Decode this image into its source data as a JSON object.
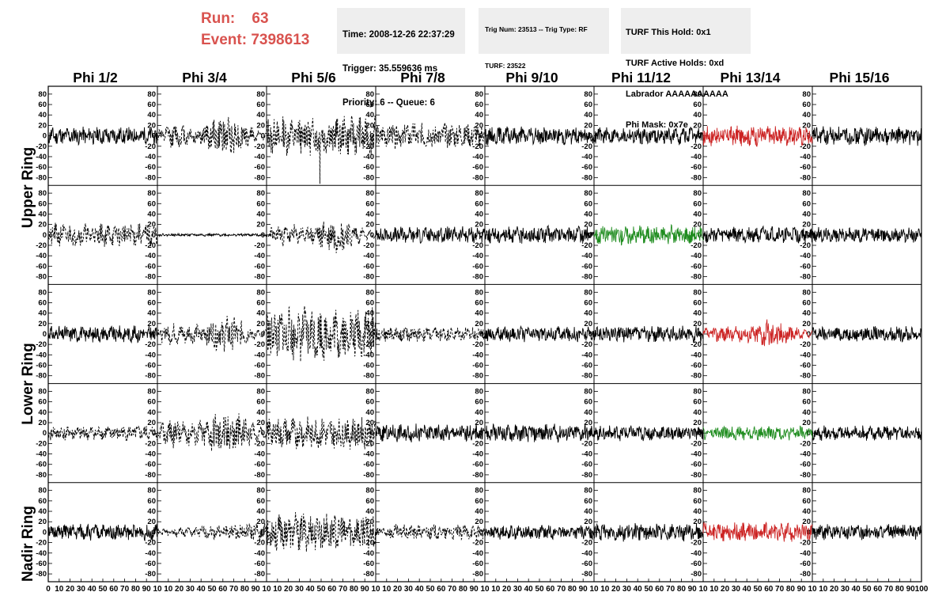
{
  "header": {
    "run_label": "Run:",
    "run_value": "63",
    "event_label": "Event:",
    "event_value": "7398613",
    "run_color": "#d9534f"
  },
  "info_box_1": {
    "time": "Time: 2008-12-26 22:37:29",
    "trigger": "Trigger: 35.559636 ms",
    "priority": "Priority: 6 -- Queue: 6"
  },
  "info_box_2": {
    "trig": "Trig Num: 23513 -- Trig Type: RF",
    "turf": "TURF: 23522"
  },
  "info_box_3": {
    "this_hold": "TURF This Hold: 0x1",
    "active_holds": "TURF Active Holds: 0xd",
    "labrador": "Labrador AAAAAAAAAA",
    "phi_mask": "Phi Mask: 0x7e"
  },
  "columns": [
    "Phi 1/2",
    "Phi 3/4",
    "Phi 5/6",
    "Phi 7/8",
    "Phi 9/10",
    "Phi 11/12",
    "Phi 13/14",
    "Phi 15/16"
  ],
  "row_labels": {
    "upper": "Upper Ring",
    "lower": "Lower Ring",
    "nadir": "Nadir Ring"
  },
  "chart_data": {
    "type": "line",
    "title": "",
    "xlabel": "",
    "ylabel": "",
    "xlim": [
      0,
      100
    ],
    "ylim": [
      -95,
      95
    ],
    "x_ticks": [
      0,
      10,
      20,
      30,
      40,
      50,
      60,
      70,
      80,
      90,
      100
    ],
    "y_ticks": [
      -80,
      -60,
      -40,
      -20,
      0,
      20,
      40,
      60,
      80
    ],
    "x_tick_labels_first": "0 10 20 30 40 50 60 70 80 90 10",
    "x_tick_labels_mid": "10 20 30 40 50 60 70 80 90 10",
    "x_tick_labels_last": "10 20 30 40 50 60 70 80 90 100",
    "colors": {
      "black": "#000000",
      "red": "#cc2222",
      "green": "#1e8c1e"
    },
    "rows": 5,
    "cols": 8,
    "panels": [
      {
        "row": 0,
        "col": 0,
        "style": "solid",
        "color": "black",
        "amp": 14,
        "env": "flat",
        "seed": 11
      },
      {
        "row": 0,
        "col": 1,
        "style": "dashed",
        "color": "black",
        "amp": 24,
        "env": "bump",
        "seed": 12
      },
      {
        "row": 0,
        "col": 2,
        "style": "dashed",
        "color": "black",
        "amp": 30,
        "env": "flat",
        "seed": 13,
        "spike": {
          "x": 49,
          "y": -92
        }
      },
      {
        "row": 0,
        "col": 3,
        "style": "dashed",
        "color": "black",
        "amp": 20,
        "env": "flat",
        "seed": 14
      },
      {
        "row": 0,
        "col": 4,
        "style": "solid",
        "color": "black",
        "amp": 14,
        "env": "flat",
        "seed": 15
      },
      {
        "row": 0,
        "col": 5,
        "style": "solid",
        "color": "black",
        "amp": 13,
        "env": "flat",
        "seed": 16
      },
      {
        "row": 0,
        "col": 6,
        "style": "solid",
        "color": "red",
        "amp": 16,
        "env": "flat",
        "seed": 17
      },
      {
        "row": 0,
        "col": 7,
        "style": "solid",
        "color": "black",
        "amp": 15,
        "env": "flat",
        "seed": 18
      },
      {
        "row": 1,
        "col": 0,
        "style": "dashed",
        "color": "black",
        "amp": 18,
        "env": "flat",
        "seed": 21
      },
      {
        "row": 1,
        "col": 1,
        "style": "solid",
        "color": "black",
        "amp": 2,
        "env": "flat",
        "seed": 22
      },
      {
        "row": 1,
        "col": 2,
        "style": "dashed",
        "color": "black",
        "amp": 22,
        "env": "bump",
        "seed": 23
      },
      {
        "row": 1,
        "col": 3,
        "style": "solid",
        "color": "black",
        "amp": 13,
        "env": "flat",
        "seed": 24
      },
      {
        "row": 1,
        "col": 4,
        "style": "solid",
        "color": "black",
        "amp": 14,
        "env": "flat",
        "seed": 25
      },
      {
        "row": 1,
        "col": 5,
        "style": "solid",
        "color": "green",
        "amp": 15,
        "env": "flat",
        "seed": 26
      },
      {
        "row": 1,
        "col": 6,
        "style": "solid",
        "color": "black",
        "amp": 13,
        "env": "flat",
        "seed": 27
      },
      {
        "row": 1,
        "col": 7,
        "style": "solid",
        "color": "black",
        "amp": 12,
        "env": "flat",
        "seed": 28
      },
      {
        "row": 2,
        "col": 0,
        "style": "solid",
        "color": "black",
        "amp": 13,
        "env": "flat",
        "seed": 31
      },
      {
        "row": 2,
        "col": 1,
        "style": "dashed",
        "color": "black",
        "amp": 22,
        "env": "bump",
        "seed": 32
      },
      {
        "row": 2,
        "col": 2,
        "style": "dashed",
        "color": "black",
        "amp": 42,
        "env": "flat",
        "seed": 33
      },
      {
        "row": 2,
        "col": 3,
        "style": "dashed",
        "color": "black",
        "amp": 12,
        "env": "flat",
        "seed": 34
      },
      {
        "row": 2,
        "col": 4,
        "style": "solid",
        "color": "black",
        "amp": 12,
        "env": "flat",
        "seed": 35
      },
      {
        "row": 2,
        "col": 5,
        "style": "solid",
        "color": "black",
        "amp": 13,
        "env": "flat",
        "seed": 36
      },
      {
        "row": 2,
        "col": 6,
        "style": "solid",
        "color": "red",
        "amp": 18,
        "env": "bump",
        "seed": 37
      },
      {
        "row": 2,
        "col": 7,
        "style": "solid",
        "color": "black",
        "amp": 12,
        "env": "flat",
        "seed": 38
      },
      {
        "row": 3,
        "col": 0,
        "style": "dashed",
        "color": "black",
        "amp": 12,
        "env": "flat",
        "seed": 41
      },
      {
        "row": 3,
        "col": 1,
        "style": "dashed",
        "color": "black",
        "amp": 30,
        "env": "bump",
        "seed": 42
      },
      {
        "row": 3,
        "col": 2,
        "style": "dashed",
        "color": "black",
        "amp": 25,
        "env": "flat",
        "seed": 43
      },
      {
        "row": 3,
        "col": 3,
        "style": "solid",
        "color": "black",
        "amp": 14,
        "env": "flat",
        "seed": 44
      },
      {
        "row": 3,
        "col": 4,
        "style": "solid",
        "color": "black",
        "amp": 14,
        "env": "flat",
        "seed": 45
      },
      {
        "row": 3,
        "col": 5,
        "style": "solid",
        "color": "black",
        "amp": 12,
        "env": "flat",
        "seed": 46
      },
      {
        "row": 3,
        "col": 6,
        "style": "solid",
        "color": "green",
        "amp": 11,
        "env": "flat",
        "seed": 47
      },
      {
        "row": 3,
        "col": 7,
        "style": "solid",
        "color": "black",
        "amp": 12,
        "env": "flat",
        "seed": 48
      },
      {
        "row": 4,
        "col": 0,
        "style": "solid",
        "color": "black",
        "amp": 13,
        "env": "flat",
        "seed": 51
      },
      {
        "row": 4,
        "col": 1,
        "style": "dashed",
        "color": "black",
        "amp": 12,
        "env": "rise",
        "seed": 52
      },
      {
        "row": 4,
        "col": 2,
        "style": "dashed",
        "color": "black",
        "amp": 30,
        "env": "flat",
        "seed": 53
      },
      {
        "row": 4,
        "col": 3,
        "style": "dashed",
        "color": "black",
        "amp": 12,
        "env": "flat",
        "seed": 54
      },
      {
        "row": 4,
        "col": 4,
        "style": "solid",
        "color": "black",
        "amp": 11,
        "env": "flat",
        "seed": 55
      },
      {
        "row": 4,
        "col": 5,
        "style": "solid",
        "color": "black",
        "amp": 14,
        "env": "flat",
        "seed": 56
      },
      {
        "row": 4,
        "col": 6,
        "style": "solid",
        "color": "red",
        "amp": 15,
        "env": "flat",
        "seed": 57
      },
      {
        "row": 4,
        "col": 7,
        "style": "solid",
        "color": "black",
        "amp": 12,
        "env": "flat",
        "seed": 58
      }
    ]
  }
}
